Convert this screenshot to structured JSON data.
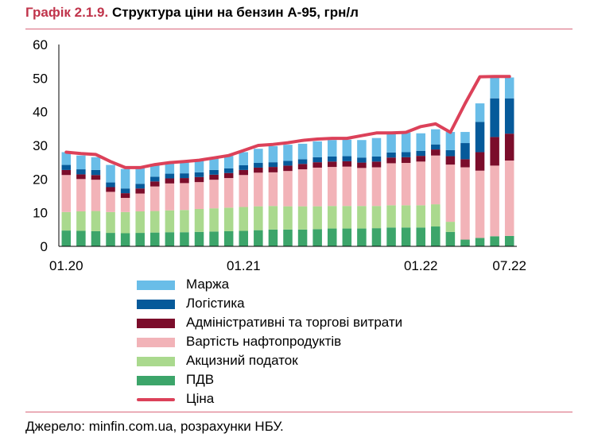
{
  "header": {
    "number": "Графік 2.1.9.",
    "title": "Структура ціни на бензин А-95, грн/л"
  },
  "source": "Джерело: minfin.com.ua, розрахунки НБУ.",
  "chart_data": {
    "type": "bar",
    "stacked": true,
    "title": "Структура ціни на бензин А-95, грн/л",
    "ylim": [
      0,
      60
    ],
    "yticks": [
      0,
      10,
      20,
      30,
      40,
      50,
      60
    ],
    "xtick_labels": [
      {
        "index": 0,
        "label": "01.20"
      },
      {
        "index": 12,
        "label": "01.21"
      },
      {
        "index": 24,
        "label": "01.22"
      },
      {
        "index": 30,
        "label": "07.22"
      }
    ],
    "grid": false,
    "legend_placement": "bottom",
    "categories": [
      "01.20",
      "02.20",
      "03.20",
      "04.20",
      "05.20",
      "06.20",
      "07.20",
      "08.20",
      "09.20",
      "10.20",
      "11.20",
      "12.20",
      "01.21",
      "02.21",
      "03.21",
      "04.21",
      "05.21",
      "06.21",
      "07.21",
      "08.21",
      "09.21",
      "10.21",
      "11.21",
      "12.21",
      "01.22",
      "02.22",
      "03.22",
      "04.22",
      "05.22",
      "06.22",
      "07.22"
    ],
    "series": [
      {
        "name": "ПДВ",
        "color": "#3ca56a",
        "values": [
          4.7,
          4.6,
          4.5,
          4.0,
          3.9,
          4.0,
          4.1,
          4.2,
          4.2,
          4.3,
          4.4,
          4.5,
          4.6,
          4.8,
          5.0,
          5.0,
          5.0,
          5.1,
          5.3,
          5.3,
          5.3,
          5.4,
          5.6,
          5.6,
          5.6,
          5.9,
          4.3,
          2.0,
          2.5,
          3.0,
          3.1
        ]
      },
      {
        "name": "Акцизний податок",
        "color": "#aad98e",
        "values": [
          5.5,
          5.8,
          6.0,
          6.2,
          6.3,
          6.4,
          6.4,
          6.5,
          6.6,
          6.8,
          6.9,
          7.0,
          7.1,
          7.1,
          7.0,
          6.9,
          6.9,
          6.8,
          6.7,
          6.7,
          6.7,
          6.6,
          6.6,
          6.6,
          6.6,
          6.6,
          3.0,
          0,
          0,
          0,
          0
        ]
      },
      {
        "name": "Вартість нафтопродуктів",
        "color": "#f2b3b8",
        "values": [
          11.0,
          9.6,
          9.3,
          6.0,
          4.2,
          5.3,
          7.3,
          8.0,
          8.0,
          8.0,
          8.5,
          8.8,
          9.5,
          10.0,
          10.0,
          10.5,
          11.0,
          11.5,
          11.6,
          11.7,
          11.3,
          11.5,
          12.5,
          12.6,
          13.0,
          14.5,
          17.0,
          21.5,
          20.0,
          21.0,
          22.4
        ]
      },
      {
        "name": "Адміністративні та торгові витрати",
        "color": "#7b0d2b",
        "values": [
          1.5,
          1.4,
          1.4,
          1.4,
          1.4,
          1.5,
          1.5,
          1.5,
          1.5,
          1.5,
          1.5,
          1.5,
          1.5,
          1.5,
          1.6,
          1.6,
          1.6,
          1.6,
          1.6,
          1.6,
          1.6,
          1.7,
          1.7,
          1.7,
          1.7,
          1.8,
          2.5,
          2.4,
          5.5,
          8.5,
          8.0
        ]
      },
      {
        "name": "Логістика",
        "color": "#065a9a",
        "values": [
          1.5,
          1.5,
          1.5,
          1.4,
          1.4,
          1.4,
          1.4,
          1.4,
          1.4,
          1.4,
          1.4,
          1.4,
          1.4,
          1.4,
          1.4,
          1.4,
          1.4,
          1.5,
          1.5,
          1.5,
          1.5,
          1.5,
          1.5,
          1.5,
          1.5,
          1.5,
          1.8,
          4.8,
          9.0,
          11.5,
          10.5
        ]
      },
      {
        "name": "Маржа",
        "color": "#69bde8",
        "values": [
          3.8,
          4.1,
          3.8,
          5.2,
          5.8,
          4.8,
          3.8,
          3.4,
          3.5,
          3.5,
          3.6,
          3.7,
          3.9,
          4.2,
          4.8,
          4.8,
          4.6,
          4.7,
          4.9,
          4.9,
          5.2,
          5.5,
          5.9,
          5.8,
          5.2,
          4.5,
          5.4,
          3.3,
          5.5,
          6.5,
          6.2
        ]
      }
    ],
    "line": {
      "name": "Ціна",
      "color": "#dc4159",
      "values": [
        28.0,
        27.6,
        27.3,
        25.2,
        23.4,
        23.4,
        24.3,
        24.9,
        25.2,
        25.6,
        26.3,
        27.0,
        28.5,
        30.0,
        30.3,
        30.8,
        31.5,
        31.9,
        32.1,
        32.1,
        32.9,
        33.7,
        33.7,
        33.9,
        35.6,
        36.4,
        33.9,
        42.5,
        50.4,
        50.5,
        50.5
      ]
    }
  },
  "legend": [
    {
      "label": "Маржа",
      "color": "#69bde8",
      "kind": "box"
    },
    {
      "label": "Логістика",
      "color": "#065a9a",
      "kind": "box"
    },
    {
      "label": "Адміністративні та торгові витрати",
      "color": "#7b0d2b",
      "kind": "box"
    },
    {
      "label": "Вартість нафтопродуктів",
      "color": "#f2b3b8",
      "kind": "box"
    },
    {
      "label": "Акцизний податок",
      "color": "#aad98e",
      "kind": "box"
    },
    {
      "label": "ПДВ",
      "color": "#3ca56a",
      "kind": "box"
    },
    {
      "label": "Ціна",
      "color": "#dc4159",
      "kind": "line"
    }
  ]
}
